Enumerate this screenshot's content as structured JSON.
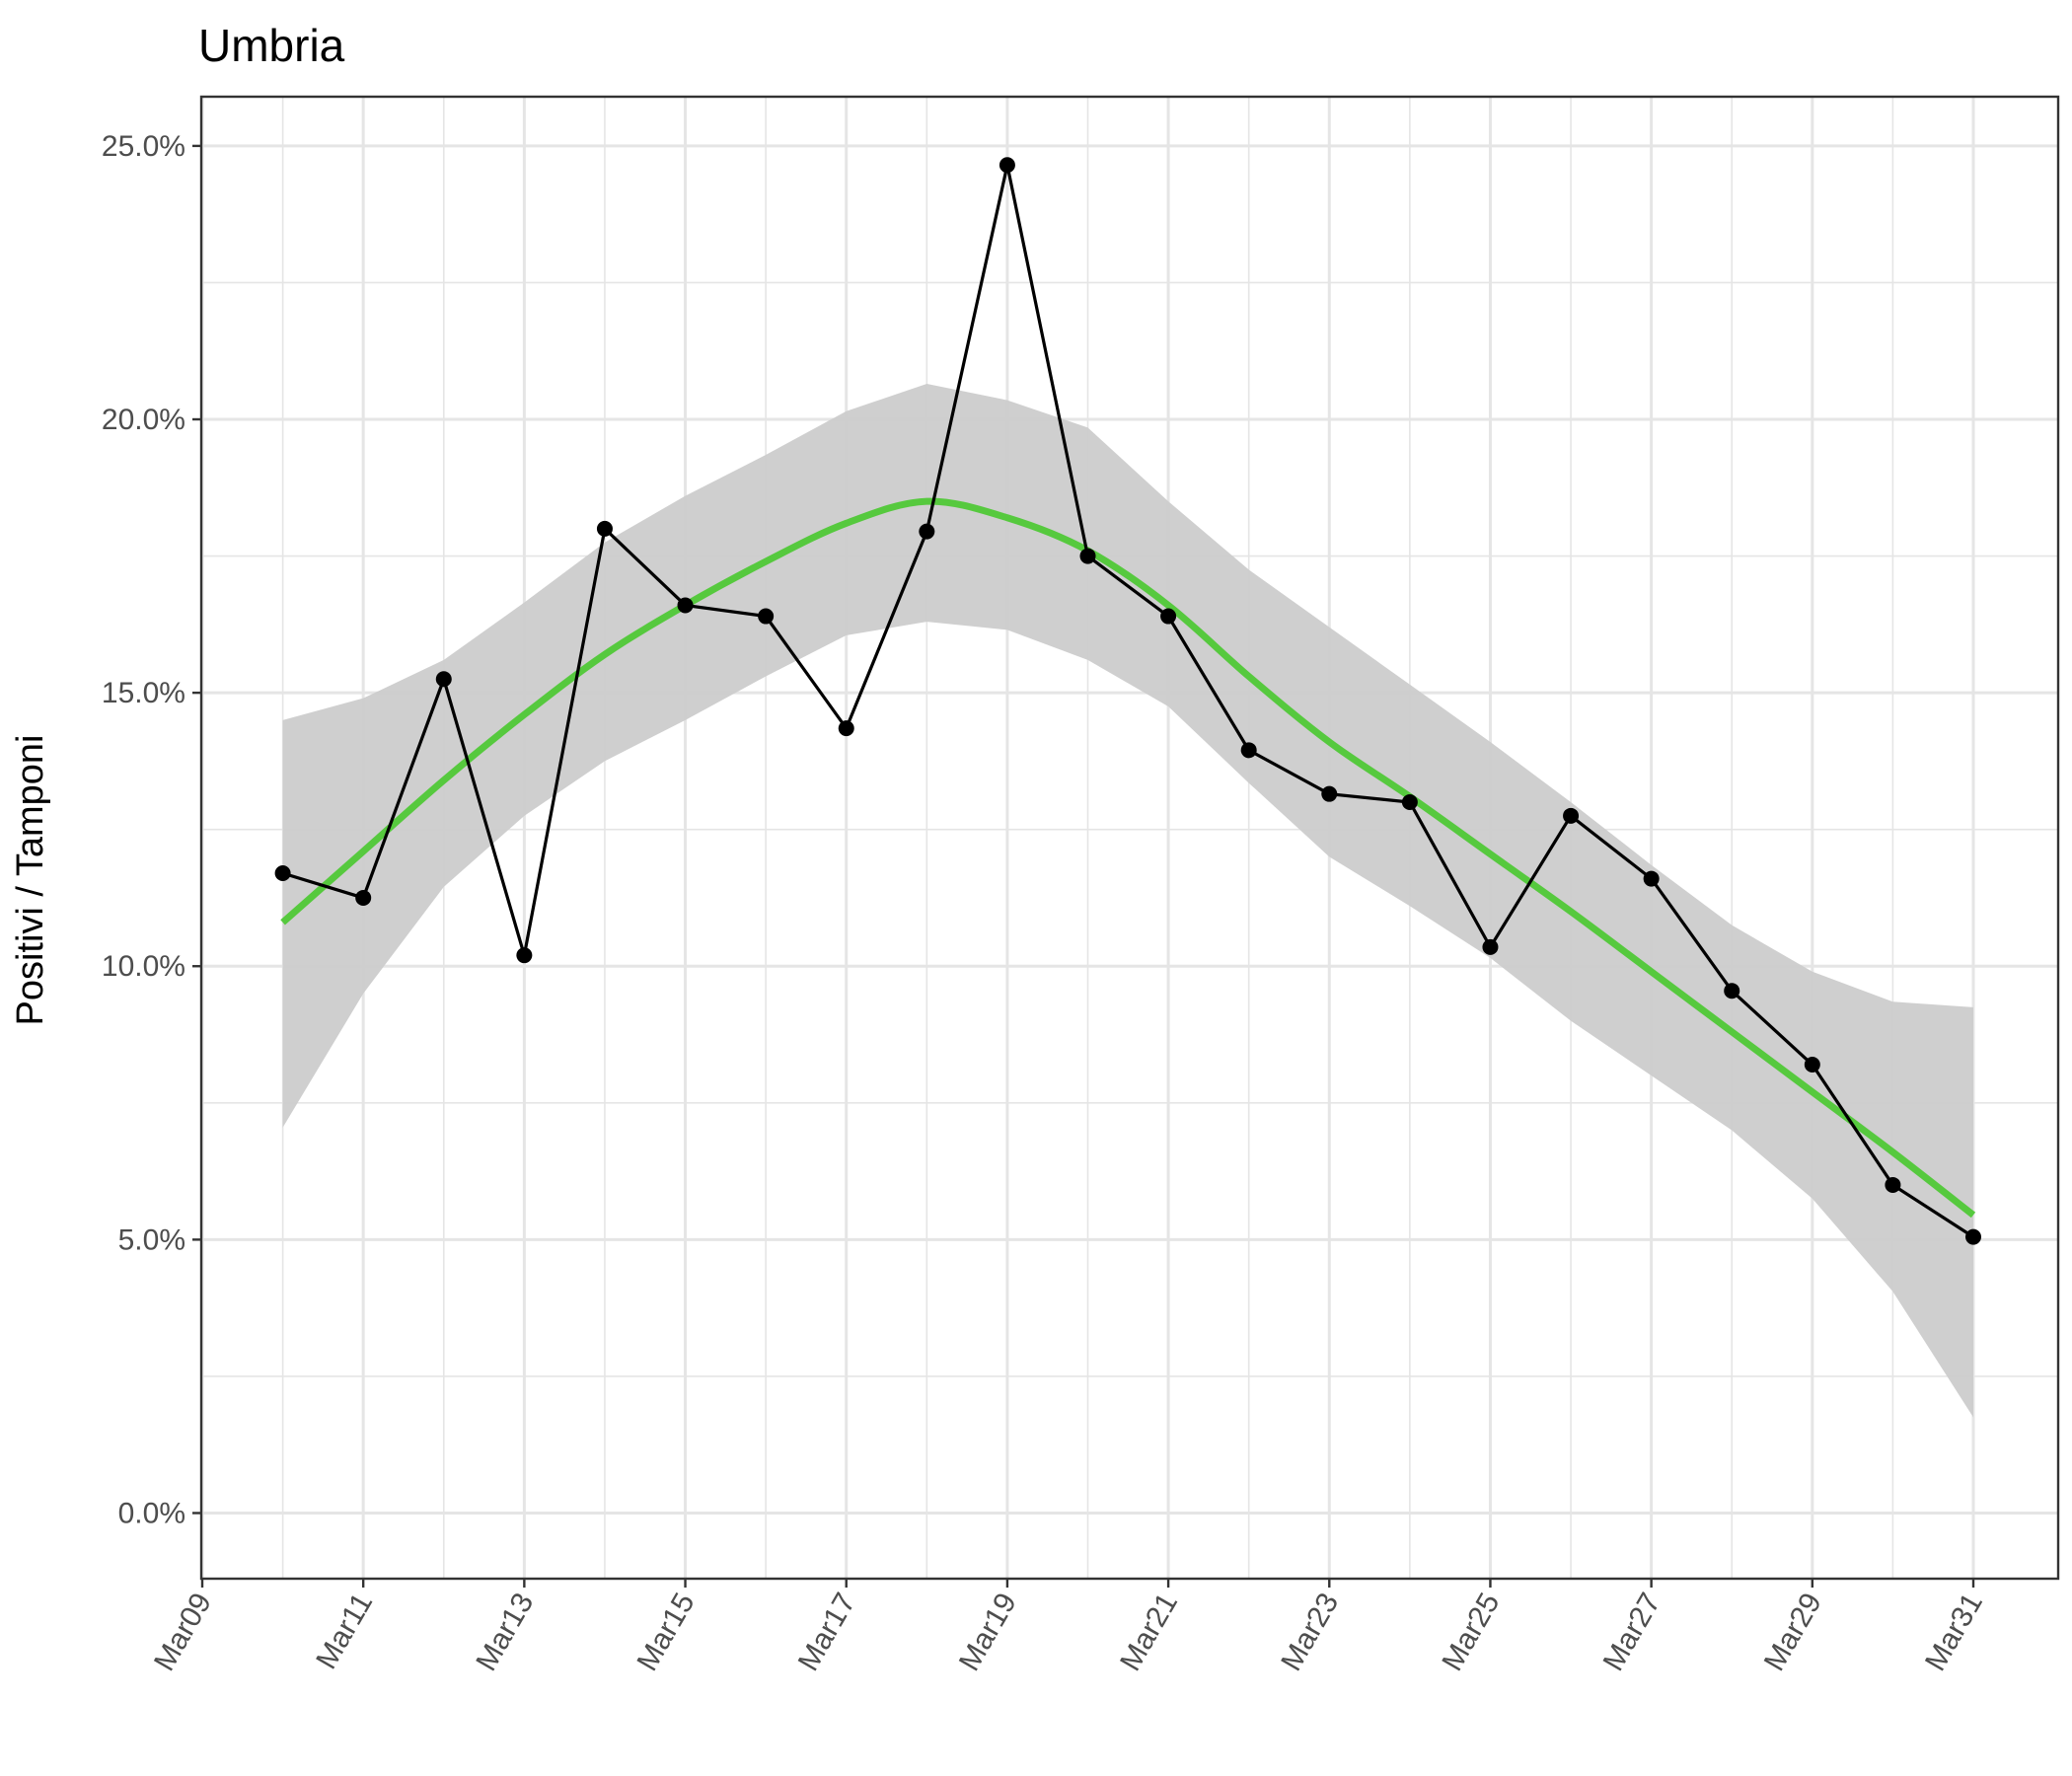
{
  "chart_data": {
    "type": "line",
    "title": "Umbria",
    "xlabel": "",
    "ylabel": "Positivi / Tamponi",
    "x_axis_type": "date",
    "x_ticks": [
      "Mar09",
      "Mar11",
      "Mar13",
      "Mar15",
      "Mar17",
      "Mar19",
      "Mar21",
      "Mar23",
      "Mar25",
      "Mar27",
      "Mar29",
      "Mar31"
    ],
    "y_ticks": [
      "0.0%",
      "5.0%",
      "10.0%",
      "15.0%",
      "20.0%",
      "25.0%"
    ],
    "ylim": [
      -0.012,
      0.259
    ],
    "x": [
      "2020-03-10",
      "2020-03-11",
      "2020-03-12",
      "2020-03-13",
      "2020-03-14",
      "2020-03-15",
      "2020-03-16",
      "2020-03-17",
      "2020-03-18",
      "2020-03-19",
      "2020-03-20",
      "2020-03-21",
      "2020-03-22",
      "2020-03-23",
      "2020-03-24",
      "2020-03-25",
      "2020-03-26",
      "2020-03-27",
      "2020-03-28",
      "2020-03-29",
      "2020-03-30",
      "2020-03-31"
    ],
    "series": [
      {
        "type": "line+points",
        "color": "#000000",
        "values": [
          0.117,
          0.1125,
          0.1525,
          0.102,
          0.18,
          0.166,
          0.164,
          0.1435,
          0.1795,
          0.2465,
          0.175,
          0.164,
          0.1395,
          0.1315,
          0.13,
          0.1035,
          0.1275,
          0.116,
          0.0955,
          0.082,
          0.06,
          0.0505
        ]
      },
      {
        "type": "smooth",
        "color": "#56c93e",
        "values": [
          0.108,
          0.121,
          0.134,
          0.146,
          0.157,
          0.166,
          0.174,
          0.181,
          0.185,
          0.182,
          0.176,
          0.166,
          0.153,
          0.141,
          0.131,
          0.1205,
          0.11,
          0.099,
          0.088,
          0.077,
          0.066,
          0.0545
        ],
        "band_lower": [
          0.0705,
          0.095,
          0.1145,
          0.1275,
          0.1375,
          0.145,
          0.153,
          0.1605,
          0.163,
          0.1615,
          0.156,
          0.1475,
          0.1335,
          0.12,
          0.111,
          0.1015,
          0.09,
          0.08,
          0.07,
          0.0575,
          0.0405,
          0.0175
        ],
        "band_upper": [
          0.145,
          0.149,
          0.156,
          0.1665,
          0.1775,
          0.186,
          0.1935,
          0.2015,
          0.2065,
          0.2035,
          0.1985,
          0.185,
          0.1725,
          0.162,
          0.1515,
          0.141,
          0.13,
          0.1185,
          0.1075,
          0.099,
          0.0935,
          0.0925
        ],
        "band_color": "#cccccc"
      }
    ],
    "grid": true,
    "background": "#ffffff",
    "panel_border_color": "#333333",
    "grid_color": "#e5e5e5"
  }
}
